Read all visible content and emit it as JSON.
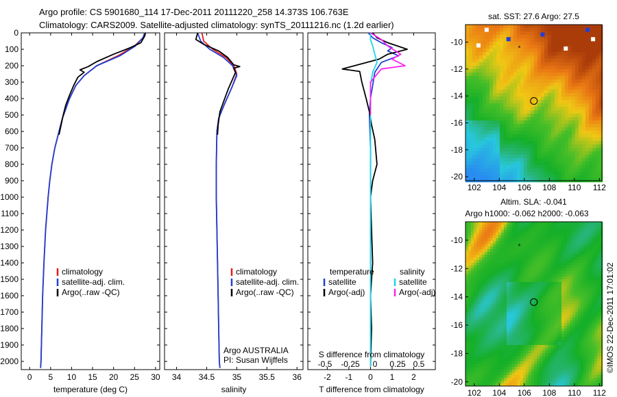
{
  "header": {
    "line1": "Argo profile: CS 5901680_114 17-Dec-2011 20111220_258 14.373S 106.763E",
    "line2": "Climatology: CARS2009. Satellite-adjusted climatology: synTS_20111216.nc (1.2d earlier)"
  },
  "colors": {
    "climatology": "#e31a1c",
    "satellite": "#1f3fd6",
    "argo": "#000000",
    "sal_satellite": "#19d7e6",
    "sal_argo": "#ff22ee"
  },
  "chart_data": [
    {
      "type": "line",
      "id": "temperature",
      "xlabel": "temperature (deg C)",
      "ylabel": "",
      "xlim": [
        -2,
        31
      ],
      "ylim": [
        2050,
        0
      ],
      "xticks": [
        0,
        5,
        10,
        15,
        20,
        25,
        30
      ],
      "yticks": [
        0,
        100,
        200,
        300,
        400,
        500,
        600,
        700,
        800,
        900,
        1000,
        1100,
        1200,
        1300,
        1400,
        1500,
        1600,
        1700,
        1800,
        1900,
        2000
      ],
      "legend": [
        "climatology",
        "satellite-adj. clim.",
        "Argo(..raw -QC)"
      ],
      "series": [
        {
          "name": "climatology",
          "color_key": "climatology",
          "points": [
            [
              27.5,
              0
            ],
            [
              27,
              30
            ],
            [
              25,
              80
            ],
            [
              21,
              140
            ],
            [
              16,
              200
            ],
            [
              13,
              260
            ],
            [
              11,
              320
            ],
            [
              9.5,
              400
            ],
            [
              8.5,
              470
            ],
            [
              7.8,
              520
            ],
            [
              7,
              600
            ],
            [
              6,
              700
            ],
            [
              5.3,
              800
            ],
            [
              4.8,
              900
            ],
            [
              4.4,
              1000
            ],
            [
              3.8,
              1200
            ],
            [
              3.4,
              1400
            ],
            [
              3.1,
              1600
            ],
            [
              2.9,
              1800
            ],
            [
              2.7,
              2000
            ],
            [
              2.6,
              2040
            ]
          ]
        },
        {
          "name": "satellite-adj. clim.",
          "color_key": "satellite",
          "points": [
            [
              27.4,
              0
            ],
            [
              27,
              30
            ],
            [
              25.2,
              80
            ],
            [
              21.5,
              140
            ],
            [
              16,
              200
            ],
            [
              13,
              260
            ],
            [
              11,
              320
            ],
            [
              9.5,
              400
            ],
            [
              8.5,
              470
            ],
            [
              7.8,
              520
            ],
            [
              7,
              600
            ],
            [
              6,
              700
            ],
            [
              5.3,
              800
            ],
            [
              4.8,
              900
            ],
            [
              4.4,
              1000
            ],
            [
              3.8,
              1200
            ],
            [
              3.4,
              1400
            ],
            [
              3.1,
              1600
            ],
            [
              2.9,
              1800
            ],
            [
              2.7,
              2000
            ],
            [
              2.6,
              2040
            ]
          ]
        },
        {
          "name": "Argo(..raw -QC)",
          "color_key": "argo",
          "points": [
            [
              27.6,
              0
            ],
            [
              27.4,
              20
            ],
            [
              26.5,
              60
            ],
            [
              24,
              90
            ],
            [
              20,
              130
            ],
            [
              16,
              175
            ],
            [
              14,
              205
            ],
            [
              12,
              225
            ],
            [
              13,
              240
            ],
            [
              11.5,
              270
            ],
            [
              10.5,
              320
            ],
            [
              9.5,
              380
            ],
            [
              8.6,
              440
            ],
            [
              8,
              500
            ],
            [
              7.5,
              560
            ],
            [
              7,
              620
            ]
          ]
        }
      ]
    },
    {
      "type": "line",
      "id": "salinity",
      "xlabel": "salinity",
      "ylabel": "",
      "xlim": [
        33.8,
        36.1
      ],
      "ylim": [
        2050,
        0
      ],
      "xticks": [
        34,
        34.5,
        35,
        35.5,
        36
      ],
      "yticks": [],
      "legend": [
        "climatology",
        "satellite-adj. clim.",
        "Argo(..raw -QC)"
      ],
      "annotations": [
        "Argo AUSTRALIA",
        "PI: Susan Wijffels"
      ],
      "series": [
        {
          "name": "climatology",
          "color_key": "climatology",
          "points": [
            [
              34.42,
              0
            ],
            [
              34.45,
              50
            ],
            [
              34.6,
              100
            ],
            [
              34.82,
              150
            ],
            [
              34.95,
              200
            ],
            [
              35.0,
              250
            ],
            [
              34.92,
              330
            ],
            [
              34.8,
              430
            ],
            [
              34.7,
              520
            ],
            [
              34.67,
              600
            ],
            [
              34.66,
              800
            ],
            [
              34.66,
              1000
            ],
            [
              34.67,
              1200
            ],
            [
              34.68,
              1400
            ],
            [
              34.69,
              1600
            ],
            [
              34.7,
              1800
            ],
            [
              34.71,
              2000
            ],
            [
              34.72,
              2040
            ]
          ]
        },
        {
          "name": "satellite-adj. clim.",
          "color_key": "satellite",
          "points": [
            [
              34.35,
              0
            ],
            [
              34.4,
              50
            ],
            [
              34.55,
              100
            ],
            [
              34.78,
              150
            ],
            [
              34.93,
              200
            ],
            [
              35.0,
              260
            ],
            [
              34.92,
              330
            ],
            [
              34.8,
              430
            ],
            [
              34.7,
              520
            ],
            [
              34.67,
              600
            ],
            [
              34.66,
              800
            ],
            [
              34.66,
              1000
            ],
            [
              34.67,
              1200
            ],
            [
              34.68,
              1400
            ],
            [
              34.69,
              1600
            ],
            [
              34.7,
              1800
            ],
            [
              34.71,
              2000
            ],
            [
              34.72,
              2040
            ]
          ]
        },
        {
          "name": "Argo(..raw -QC)",
          "color_key": "argo",
          "points": [
            [
              34.35,
              0
            ],
            [
              34.32,
              40
            ],
            [
              34.45,
              70
            ],
            [
              34.7,
              110
            ],
            [
              34.85,
              150
            ],
            [
              34.95,
              195
            ],
            [
              35.05,
              205
            ],
            [
              34.95,
              215
            ],
            [
              34.98,
              240
            ],
            [
              34.92,
              290
            ],
            [
              34.86,
              340
            ],
            [
              34.8,
              400
            ],
            [
              34.72,
              480
            ],
            [
              34.69,
              560
            ],
            [
              34.68,
              620
            ]
          ]
        }
      ]
    },
    {
      "type": "line",
      "id": "differences",
      "xlabel": "T difference from climatology",
      "xlabel_top": "S difference from climatology",
      "ylabel": "",
      "xlim": [
        -2.9,
        3.0
      ],
      "ylim": [
        2050,
        0
      ],
      "xticks": [
        -2,
        -1,
        0,
        1,
        2
      ],
      "xticks_top": [
        -0.5,
        -0.25,
        0,
        0.25,
        0.5
      ],
      "yticks": [],
      "legend_titles": [
        "temperature",
        "salinity"
      ],
      "legend": [
        "satellite",
        "Argo(-adj)",
        "satellite",
        "Argo(-adj)"
      ],
      "series": [
        {
          "name": "satellite",
          "group": "temperature",
          "color_key": "satellite",
          "points": [
            [
              -0.1,
              0
            ],
            [
              0.1,
              30
            ],
            [
              0.5,
              60
            ],
            [
              1.0,
              90
            ],
            [
              0.8,
              110
            ],
            [
              1.3,
              140
            ],
            [
              0.5,
              180
            ],
            [
              0.2,
              240
            ],
            [
              0.1,
              320
            ],
            [
              0,
              400
            ],
            [
              -0.05,
              500
            ],
            [
              0,
              700
            ],
            [
              0,
              1000
            ],
            [
              0,
              1400
            ],
            [
              0,
              1800
            ],
            [
              0,
              2030
            ]
          ]
        },
        {
          "name": "Argo(-adj)",
          "group": "temperature",
          "color_key": "argo",
          "points": [
            [
              0.1,
              0
            ],
            [
              0.3,
              30
            ],
            [
              0.8,
              60
            ],
            [
              1.7,
              100
            ],
            [
              0.8,
              130
            ],
            [
              0.4,
              160
            ],
            [
              -1.3,
              220
            ],
            [
              -0.5,
              235
            ],
            [
              -0.4,
              300
            ],
            [
              -0.2,
              400
            ],
            [
              -0.05,
              480
            ],
            [
              0.05,
              560
            ],
            [
              0.2,
              650
            ],
            [
              0.3,
              800
            ],
            [
              0.1,
              900
            ],
            [
              0,
              1000
            ],
            [
              0.05,
              1200
            ],
            [
              0.1,
              1400
            ],
            [
              0,
              1600
            ],
            [
              0.05,
              1800
            ],
            [
              0,
              2030
            ]
          ]
        },
        {
          "name": "satellite",
          "group": "salinity",
          "color_key": "sal_satellite",
          "points": [
            [
              0,
              0
            ],
            [
              0,
              40
            ],
            [
              0.1,
              80
            ],
            [
              0.2,
              130
            ],
            [
              0.3,
              180
            ],
            [
              0.1,
              240
            ],
            [
              0,
              320
            ],
            [
              0,
              500
            ],
            [
              0,
              800
            ],
            [
              0,
              1200
            ],
            [
              0,
              1600
            ],
            [
              0,
              2030
            ]
          ]
        },
        {
          "name": "Argo(-adj)",
          "group": "salinity",
          "color_key": "sal_argo",
          "points": [
            [
              0,
              0
            ],
            [
              0.5,
              40
            ],
            [
              0.8,
              80
            ],
            [
              1.4,
              130
            ],
            [
              1.0,
              160
            ],
            [
              1.6,
              200
            ],
            [
              0.5,
              220
            ],
            [
              0,
              300
            ],
            [
              0,
              400
            ],
            [
              0,
              500
            ]
          ]
        }
      ]
    }
  ],
  "maps": {
    "sst": {
      "title": "sat. SST: 27.6  Argo: 27.5",
      "xticks": [
        "102",
        "104",
        "106",
        "108",
        "110",
        "112"
      ],
      "yticks": [
        "-10",
        "-12",
        "-14",
        "-16",
        "-18",
        "-20"
      ],
      "lon_range": [
        101.3,
        112.2
      ],
      "lat_range": [
        -8.7,
        -20.3
      ],
      "float_position": [
        106.763,
        -14.373
      ],
      "marker_label": "*",
      "marker_pos": [
        105.6,
        -10.4
      ]
    },
    "sla": {
      "title": "Altim. SLA: -0.041",
      "subtitle": "Argo h1000: -0.062  h2000: -0.063",
      "xticks": [
        "102",
        "104",
        "106",
        "108",
        "110",
        "112"
      ],
      "yticks": [
        "-10",
        "-12",
        "-14",
        "-16",
        "-18",
        "-20"
      ],
      "lon_range": [
        101.3,
        112.2
      ],
      "lat_range": [
        -8.7,
        -20.3
      ],
      "float_position": [
        106.763,
        -14.373
      ],
      "marker_label": "*",
      "marker_pos": [
        105.6,
        -10.4
      ]
    }
  },
  "credit": "©IMOS 22-Dec-2011 17:01:02"
}
